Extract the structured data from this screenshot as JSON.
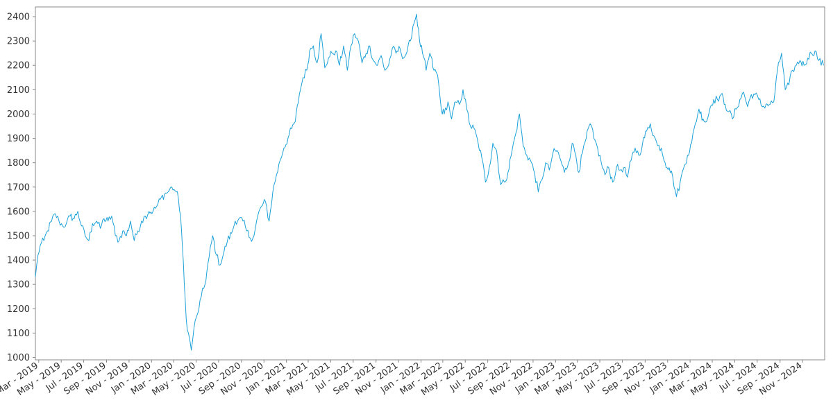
{
  "chart_data": {
    "type": "line",
    "title": "",
    "xlabel": "",
    "ylabel": "",
    "grid": false,
    "legend": "none",
    "colors": {
      "line": "#1ba1d8",
      "axis": "#888888",
      "text": "#333333"
    },
    "xlim": [
      "2019-02-20",
      "2024-12-31"
    ],
    "ylim": [
      990,
      2440
    ],
    "y_ticks": [
      1000,
      1100,
      1200,
      1300,
      1400,
      1500,
      1600,
      1700,
      1800,
      1900,
      2000,
      2100,
      2200,
      2300,
      2400
    ],
    "x_ticks": [
      {
        "date": "2019-03-01",
        "label": "Mar - 2019"
      },
      {
        "date": "2019-05-01",
        "label": "May - 2019"
      },
      {
        "date": "2019-07-01",
        "label": "Jul - 2019"
      },
      {
        "date": "2019-09-01",
        "label": "Sep - 2019"
      },
      {
        "date": "2019-11-01",
        "label": "Nov - 2019"
      },
      {
        "date": "2020-01-01",
        "label": "Jan - 2020"
      },
      {
        "date": "2020-03-01",
        "label": "Mar - 2020"
      },
      {
        "date": "2020-05-01",
        "label": "May - 2020"
      },
      {
        "date": "2020-07-01",
        "label": "Jul - 2020"
      },
      {
        "date": "2020-09-01",
        "label": "Sep - 2020"
      },
      {
        "date": "2020-11-01",
        "label": "Nov - 2020"
      },
      {
        "date": "2021-01-01",
        "label": "Jan - 2021"
      },
      {
        "date": "2021-03-01",
        "label": "Mar - 2021"
      },
      {
        "date": "2021-05-01",
        "label": "May - 2021"
      },
      {
        "date": "2021-07-01",
        "label": "Jul - 2021"
      },
      {
        "date": "2021-09-01",
        "label": "Sep - 2021"
      },
      {
        "date": "2021-11-01",
        "label": "Nov - 2021"
      },
      {
        "date": "2022-01-01",
        "label": "Jan - 2022"
      },
      {
        "date": "2022-03-01",
        "label": "Mar - 2022"
      },
      {
        "date": "2022-05-01",
        "label": "May - 2022"
      },
      {
        "date": "2022-07-01",
        "label": "Jul - 2022"
      },
      {
        "date": "2022-09-01",
        "label": "Sep - 2022"
      },
      {
        "date": "2022-11-01",
        "label": "Nov - 2022"
      },
      {
        "date": "2023-01-01",
        "label": "Jan - 2023"
      },
      {
        "date": "2023-03-01",
        "label": "Mar - 2023"
      },
      {
        "date": "2023-05-01",
        "label": "May - 2023"
      },
      {
        "date": "2023-07-01",
        "label": "Jul - 2023"
      },
      {
        "date": "2023-09-01",
        "label": "Sep - 2023"
      },
      {
        "date": "2023-11-01",
        "label": "Nov - 2023"
      },
      {
        "date": "2024-01-01",
        "label": "Jan - 2024"
      },
      {
        "date": "2024-03-01",
        "label": "Mar - 2024"
      },
      {
        "date": "2024-05-01",
        "label": "May - 2024"
      },
      {
        "date": "2024-07-01",
        "label": "Jul - 2024"
      },
      {
        "date": "2024-09-01",
        "label": "Sep - 2024"
      },
      {
        "date": "2024-11-01",
        "label": "Nov - 2024"
      }
    ],
    "series": [
      {
        "x": [
          "2019-02-20",
          "2019-02-27",
          "2019-03-05",
          "2019-03-15",
          "2019-03-25",
          "2019-04-05",
          "2019-04-15",
          "2019-04-25",
          "2019-05-05",
          "2019-05-15",
          "2019-05-25",
          "2019-06-05",
          "2019-06-15",
          "2019-06-25",
          "2019-07-05",
          "2019-07-15",
          "2019-07-25",
          "2019-08-05",
          "2019-08-15",
          "2019-08-25",
          "2019-09-05",
          "2019-09-15",
          "2019-09-25",
          "2019-10-05",
          "2019-10-15",
          "2019-10-25",
          "2019-11-05",
          "2019-11-15",
          "2019-11-25",
          "2019-12-05",
          "2019-12-15",
          "2019-12-25",
          "2020-01-05",
          "2020-01-15",
          "2020-01-25",
          "2020-02-05",
          "2020-02-15",
          "2020-02-25",
          "2020-03-02",
          "2020-03-08",
          "2020-03-14",
          "2020-03-20",
          "2020-03-25",
          "2020-03-30",
          "2020-04-04",
          "2020-04-10",
          "2020-04-18",
          "2020-04-25",
          "2020-05-05",
          "2020-05-15",
          "2020-05-25",
          "2020-06-05",
          "2020-06-15",
          "2020-06-25",
          "2020-07-05",
          "2020-07-15",
          "2020-07-25",
          "2020-08-05",
          "2020-08-15",
          "2020-08-25",
          "2020-09-05",
          "2020-09-15",
          "2020-09-25",
          "2020-10-05",
          "2020-10-15",
          "2020-10-25",
          "2020-11-05",
          "2020-11-15",
          "2020-11-25",
          "2020-12-05",
          "2020-12-15",
          "2020-12-25",
          "2021-01-05",
          "2021-01-15",
          "2021-01-25",
          "2021-02-05",
          "2021-02-15",
          "2021-02-25",
          "2021-03-05",
          "2021-03-15",
          "2021-03-25",
          "2021-04-05",
          "2021-04-15",
          "2021-04-25",
          "2021-05-05",
          "2021-05-15",
          "2021-05-25",
          "2021-06-05",
          "2021-06-15",
          "2021-06-25",
          "2021-07-05",
          "2021-07-15",
          "2021-07-25",
          "2021-08-05",
          "2021-08-15",
          "2021-08-25",
          "2021-09-05",
          "2021-09-15",
          "2021-09-25",
          "2021-10-05",
          "2021-10-15",
          "2021-10-25",
          "2021-11-05",
          "2021-11-15",
          "2021-11-25",
          "2021-12-03",
          "2021-12-10",
          "2021-12-20",
          "2021-12-28",
          "2022-01-05",
          "2022-01-15",
          "2022-01-25",
          "2022-02-05",
          "2022-02-15",
          "2022-02-25",
          "2022-03-05",
          "2022-03-15",
          "2022-03-25",
          "2022-04-05",
          "2022-04-15",
          "2022-04-25",
          "2022-05-05",
          "2022-05-15",
          "2022-05-25",
          "2022-06-05",
          "2022-06-15",
          "2022-06-25",
          "2022-07-05",
          "2022-07-15",
          "2022-07-25",
          "2022-08-05",
          "2022-08-15",
          "2022-08-25",
          "2022-09-05",
          "2022-09-15",
          "2022-09-25",
          "2022-10-05",
          "2022-10-15",
          "2022-10-25",
          "2022-11-05",
          "2022-11-15",
          "2022-11-25",
          "2022-12-05",
          "2022-12-15",
          "2022-12-25",
          "2023-01-05",
          "2023-01-15",
          "2023-01-25",
          "2023-02-05",
          "2023-02-15",
          "2023-02-25",
          "2023-03-05",
          "2023-03-15",
          "2023-03-25",
          "2023-04-05",
          "2023-04-15",
          "2023-04-25",
          "2023-05-05",
          "2023-05-15",
          "2023-05-25",
          "2023-06-05",
          "2023-06-15",
          "2023-06-25",
          "2023-07-05",
          "2023-07-15",
          "2023-07-25",
          "2023-08-05",
          "2023-08-15",
          "2023-08-25",
          "2023-09-05",
          "2023-09-15",
          "2023-09-25",
          "2023-10-05",
          "2023-10-15",
          "2023-10-25",
          "2023-11-05",
          "2023-11-15",
          "2023-11-25",
          "2023-12-05",
          "2023-12-15",
          "2023-12-25",
          "2024-01-05",
          "2024-01-15",
          "2024-01-25",
          "2024-02-05",
          "2024-02-15",
          "2024-02-25",
          "2024-03-05",
          "2024-03-15",
          "2024-03-25",
          "2024-04-05",
          "2024-04-15",
          "2024-04-25",
          "2024-05-05",
          "2024-05-15",
          "2024-05-25",
          "2024-06-05",
          "2024-06-15",
          "2024-06-25",
          "2024-07-05",
          "2024-07-15",
          "2024-07-25",
          "2024-08-05",
          "2024-08-15",
          "2024-08-25",
          "2024-09-05",
          "2024-09-15",
          "2024-09-25",
          "2024-10-05",
          "2024-10-15",
          "2024-10-25",
          "2024-11-05",
          "2024-11-15",
          "2024-11-25",
          "2024-12-05",
          "2024-12-15",
          "2024-12-28"
        ],
        "y": [
          1330,
          1420,
          1460,
          1480,
          1520,
          1560,
          1590,
          1560,
          1540,
          1550,
          1580,
          1570,
          1600,
          1540,
          1500,
          1480,
          1550,
          1560,
          1530,
          1570,
          1560,
          1580,
          1500,
          1480,
          1520,
          1500,
          1560,
          1480,
          1520,
          1560,
          1580,
          1600,
          1600,
          1620,
          1650,
          1670,
          1680,
          1700,
          1690,
          1680,
          1650,
          1580,
          1450,
          1300,
          1160,
          1100,
          1030,
          1120,
          1180,
          1250,
          1300,
          1410,
          1500,
          1420,
          1380,
          1430,
          1480,
          1510,
          1560,
          1570,
          1560,
          1520,
          1490,
          1500,
          1580,
          1620,
          1640,
          1560,
          1680,
          1750,
          1810,
          1860,
          1900,
          1940,
          1970,
          2080,
          2150,
          2180,
          2260,
          2280,
          2210,
          2330,
          2190,
          2230,
          2250,
          2260,
          2200,
          2280,
          2180,
          2280,
          2330,
          2300,
          2210,
          2250,
          2280,
          2220,
          2200,
          2240,
          2180,
          2200,
          2270,
          2250,
          2270,
          2230,
          2260,
          2300,
          2360,
          2410,
          2300,
          2250,
          2180,
          2250,
          2180,
          2160,
          2020,
          2000,
          2050,
          1980,
          2050,
          2040,
          2100,
          2020,
          1950,
          1940,
          1880,
          1820,
          1720,
          1780,
          1880,
          1850,
          1710,
          1720,
          1760,
          1850,
          1920,
          2000,
          1870,
          1830,
          1810,
          1760,
          1680,
          1730,
          1800,
          1770,
          1840,
          1850,
          1810,
          1760,
          1800,
          1880,
          1830,
          1760,
          1840,
          1900,
          1960,
          1900,
          1860,
          1800,
          1750,
          1780,
          1720,
          1780,
          1770,
          1780,
          1740,
          1810,
          1860,
          1830,
          1880,
          1930,
          1960,
          1910,
          1870,
          1860,
          1800,
          1780,
          1740,
          1660,
          1720,
          1780,
          1830,
          1880,
          1960,
          2020,
          1980,
          1970,
          2030,
          2060,
          2060,
          2080,
          2040,
          2010,
          1980,
          2020,
          2060,
          2090,
          2030,
          2080,
          2080,
          2060,
          2030,
          2040,
          2040,
          2050,
          2180,
          2250,
          2100,
          2120,
          2180,
          2200,
          2220,
          2200,
          2230,
          2250,
          2260,
          2220,
          2200
        ]
      }
    ]
  }
}
